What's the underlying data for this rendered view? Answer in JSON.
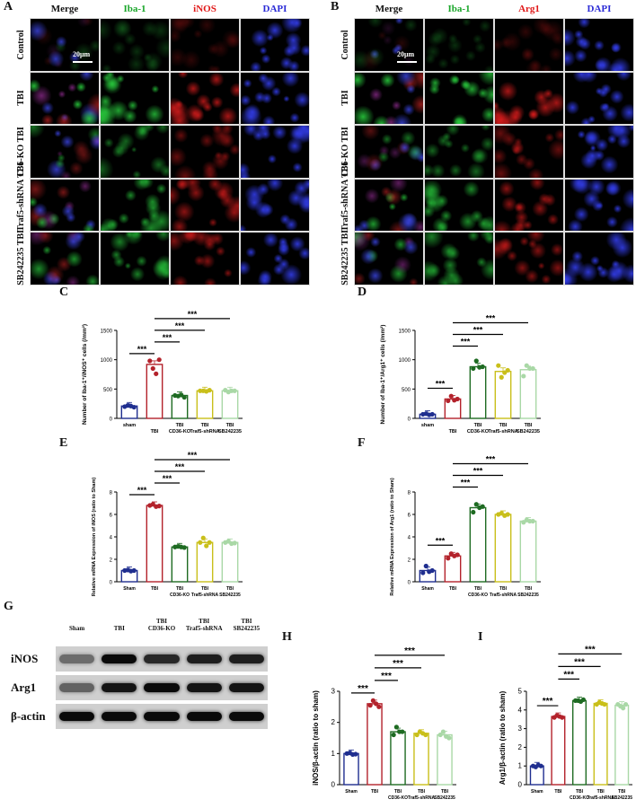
{
  "panels": {
    "A": "A",
    "B": "B",
    "C": "C",
    "D": "D",
    "E": "E",
    "F": "F",
    "G": "G",
    "H": "H",
    "I": "I"
  },
  "colors": {
    "sham": "#1f2e8f",
    "tbi": "#b3222b",
    "cd36": "#1e6b22",
    "traf5": "#c9bf1a",
    "sb": "#a9d8a6",
    "green_stain": "#1aa62a",
    "red_stain": "#e01818",
    "blue_stain": "#2b2bd6"
  },
  "panelA": {
    "headers": [
      {
        "text": "Merge",
        "color": "#111111"
      },
      {
        "text": "Iba-1",
        "color": "#1aa62a"
      },
      {
        "text": "iNOS",
        "color": "#e01818"
      },
      {
        "text": "DAPI",
        "color": "#2b2bd6"
      }
    ],
    "rows": [
      "Control",
      "TBI",
      "C36-KO TBI",
      "Traf5-shRNA TBI",
      "SB242235 TBI"
    ],
    "scale": "20μm"
  },
  "panelB": {
    "headers": [
      {
        "text": "Merge",
        "color": "#111111"
      },
      {
        "text": "Iba-1",
        "color": "#1aa62a"
      },
      {
        "text": "Arg1",
        "color": "#e01818"
      },
      {
        "text": "DAPI",
        "color": "#2b2bd6"
      }
    ],
    "rows": [
      "Control",
      "TBI",
      "C36-KO TBI",
      "Traf5-shRNA TBI",
      "SB242235 TBI"
    ],
    "scale": "20μm"
  },
  "chart_data": [
    {
      "id": "C",
      "type": "bar",
      "categories": [
        "sham",
        "TBI",
        "CD36-KO",
        "Traf5-shRNA",
        "SB242235"
      ],
      "category_labels": [
        "sham",
        "TBI",
        "CD36-KO",
        "Traf5-shRNA",
        "SB242235"
      ],
      "group_label": "TBI",
      "values": [
        210,
        920,
        390,
        470,
        470
      ],
      "points": [
        [
          200,
          220,
          210,
          190
        ],
        [
          980,
          850,
          760,
          1000
        ],
        [
          390,
          380,
          400,
          360
        ],
        [
          470,
          470,
          460,
          480
        ],
        [
          480,
          450,
          470,
          470
        ]
      ],
      "ylabel": "Number of Iba-1⁺/iNOS⁺ cells (/mm²)",
      "ylim": [
        0,
        1500
      ],
      "yticks": [
        0,
        500,
        1000,
        1500
      ],
      "significance": [
        "***",
        "***",
        "***",
        "***"
      ]
    },
    {
      "id": "D",
      "type": "bar",
      "categories": [
        "sham",
        "TBI",
        "CD36-KO",
        "Traf5-shRNA",
        "SB242235"
      ],
      "category_labels": [
        "sham",
        "TBI",
        "CD36-KO",
        "Traf5-shRNA",
        "SB242235"
      ],
      "group_label": "TBI",
      "values": [
        70,
        330,
        880,
        800,
        830
      ],
      "points": [
        [
          70,
          80,
          60,
          70
        ],
        [
          300,
          380,
          310,
          330
        ],
        [
          850,
          980,
          870,
          880
        ],
        [
          900,
          700,
          780,
          820
        ],
        [
          720,
          900,
          850,
          850
        ]
      ],
      "ylabel": "Number of Iba-1⁺/Arg1⁺ cells (/mm²)",
      "ylim": [
        0,
        1500
      ],
      "yticks": [
        0,
        500,
        1000,
        1500
      ],
      "significance": [
        "***",
        "***",
        "***",
        "***"
      ]
    },
    {
      "id": "E",
      "type": "bar",
      "categories": [
        "Sham",
        "TBI",
        "CD36-KO",
        "Traf5-shRNA",
        "SB242235"
      ],
      "category_labels": [
        "Sham",
        "TBI",
        "TBI CD36-KO",
        "TBI Traf5-shRNA",
        "TBI SB242235"
      ],
      "values": [
        1.0,
        6.8,
        3.1,
        3.5,
        3.5
      ],
      "points": [
        [
          1.0,
          1.05,
          0.95,
          1.0
        ],
        [
          6.8,
          6.9,
          6.7,
          6.75
        ],
        [
          3.1,
          3.15,
          3.1,
          3.05
        ],
        [
          3.5,
          3.9,
          3.2,
          3.5
        ],
        [
          3.5,
          3.6,
          3.4,
          3.45
        ]
      ],
      "ylabel": "Relative mRNA Expression of iNOS (ratio to Sham)",
      "ylim": [
        0,
        8
      ],
      "yticks": [
        0,
        2,
        4,
        6,
        8
      ],
      "significance": [
        "***",
        "***",
        "***",
        "***"
      ]
    },
    {
      "id": "F",
      "type": "bar",
      "categories": [
        "Sham",
        "TBI",
        "CD36-KO",
        "Traf5-shRNA",
        "SB242235"
      ],
      "category_labels": [
        "Sham",
        "TBI",
        "TBI CD36-KO",
        "TBI Traf5-shRNA",
        "TBI SB242235"
      ],
      "values": [
        1.0,
        2.3,
        6.6,
        6.0,
        5.4
      ],
      "points": [
        [
          0.8,
          1.4,
          0.9,
          1.0
        ],
        [
          2.1,
          2.5,
          2.3,
          2.4
        ],
        [
          6.2,
          6.9,
          6.6,
          6.7
        ],
        [
          6.0,
          6.1,
          5.9,
          6.0
        ],
        [
          5.3,
          5.5,
          5.4,
          5.4
        ]
      ],
      "ylabel": "Relative mRNA Expression of Arg1 (ratio to Sham)",
      "ylim": [
        0,
        8
      ],
      "yticks": [
        0,
        2,
        4,
        6,
        8
      ],
      "significance": [
        "***",
        "***",
        "***",
        "***"
      ]
    },
    {
      "id": "H",
      "type": "bar",
      "categories": [
        "Sham",
        "TBI",
        "CD36-KO",
        "Traf5-shRNA",
        "SB242235"
      ],
      "category_labels": [
        "Sham",
        "TBI",
        "TBI CD36-KO",
        "TBI Traf5-shRNA",
        "TBI SB242235"
      ],
      "values": [
        1.0,
        2.6,
        1.7,
        1.65,
        1.6
      ],
      "points": [
        [
          1.0,
          1.02,
          0.97,
          0.98
        ],
        [
          2.55,
          2.7,
          2.6,
          2.5
        ],
        [
          1.6,
          1.85,
          1.7,
          1.7
        ],
        [
          1.6,
          1.7,
          1.65,
          1.6
        ],
        [
          1.6,
          1.7,
          1.55,
          1.5
        ]
      ],
      "ylabel": "iNOS/β-actin (ratio to sham)",
      "ylim": [
        0,
        3
      ],
      "yticks": [
        0,
        1,
        2,
        3
      ],
      "significance": [
        "***",
        "***",
        "***",
        "***"
      ]
    },
    {
      "id": "I",
      "type": "bar",
      "categories": [
        "Sham",
        "TBI",
        "CD36-KO",
        "Traf5-shRNA",
        "SB242235"
      ],
      "category_labels": [
        "Sham",
        "TBI",
        "TBI CD36-KO",
        "TBI Traf5-shRNA",
        "TBI SB242235"
      ],
      "values": [
        1.0,
        3.65,
        4.5,
        4.35,
        4.25
      ],
      "points": [
        [
          1.0,
          0.95,
          1.05,
          1.0
        ],
        [
          3.6,
          3.7,
          3.65,
          3.6
        ],
        [
          4.5,
          4.5,
          4.45,
          4.55
        ],
        [
          4.3,
          4.4,
          4.35,
          4.3
        ],
        [
          4.3,
          4.2,
          4.1,
          4.3
        ]
      ],
      "ylabel": "Arg1/β-actin (ratio to sham)",
      "ylim": [
        0,
        5
      ],
      "yticks": [
        0,
        1,
        2,
        3,
        4,
        5
      ],
      "significance": [
        "***",
        "***",
        "***",
        "***"
      ]
    }
  ],
  "panelG": {
    "lanes": [
      "Sham",
      "TBI",
      "TBI CD36-KO",
      "TBI Traf5-shRNA",
      "TBI SB242235"
    ],
    "bands": [
      "iNOS",
      "Arg1",
      "β-actin"
    ]
  }
}
